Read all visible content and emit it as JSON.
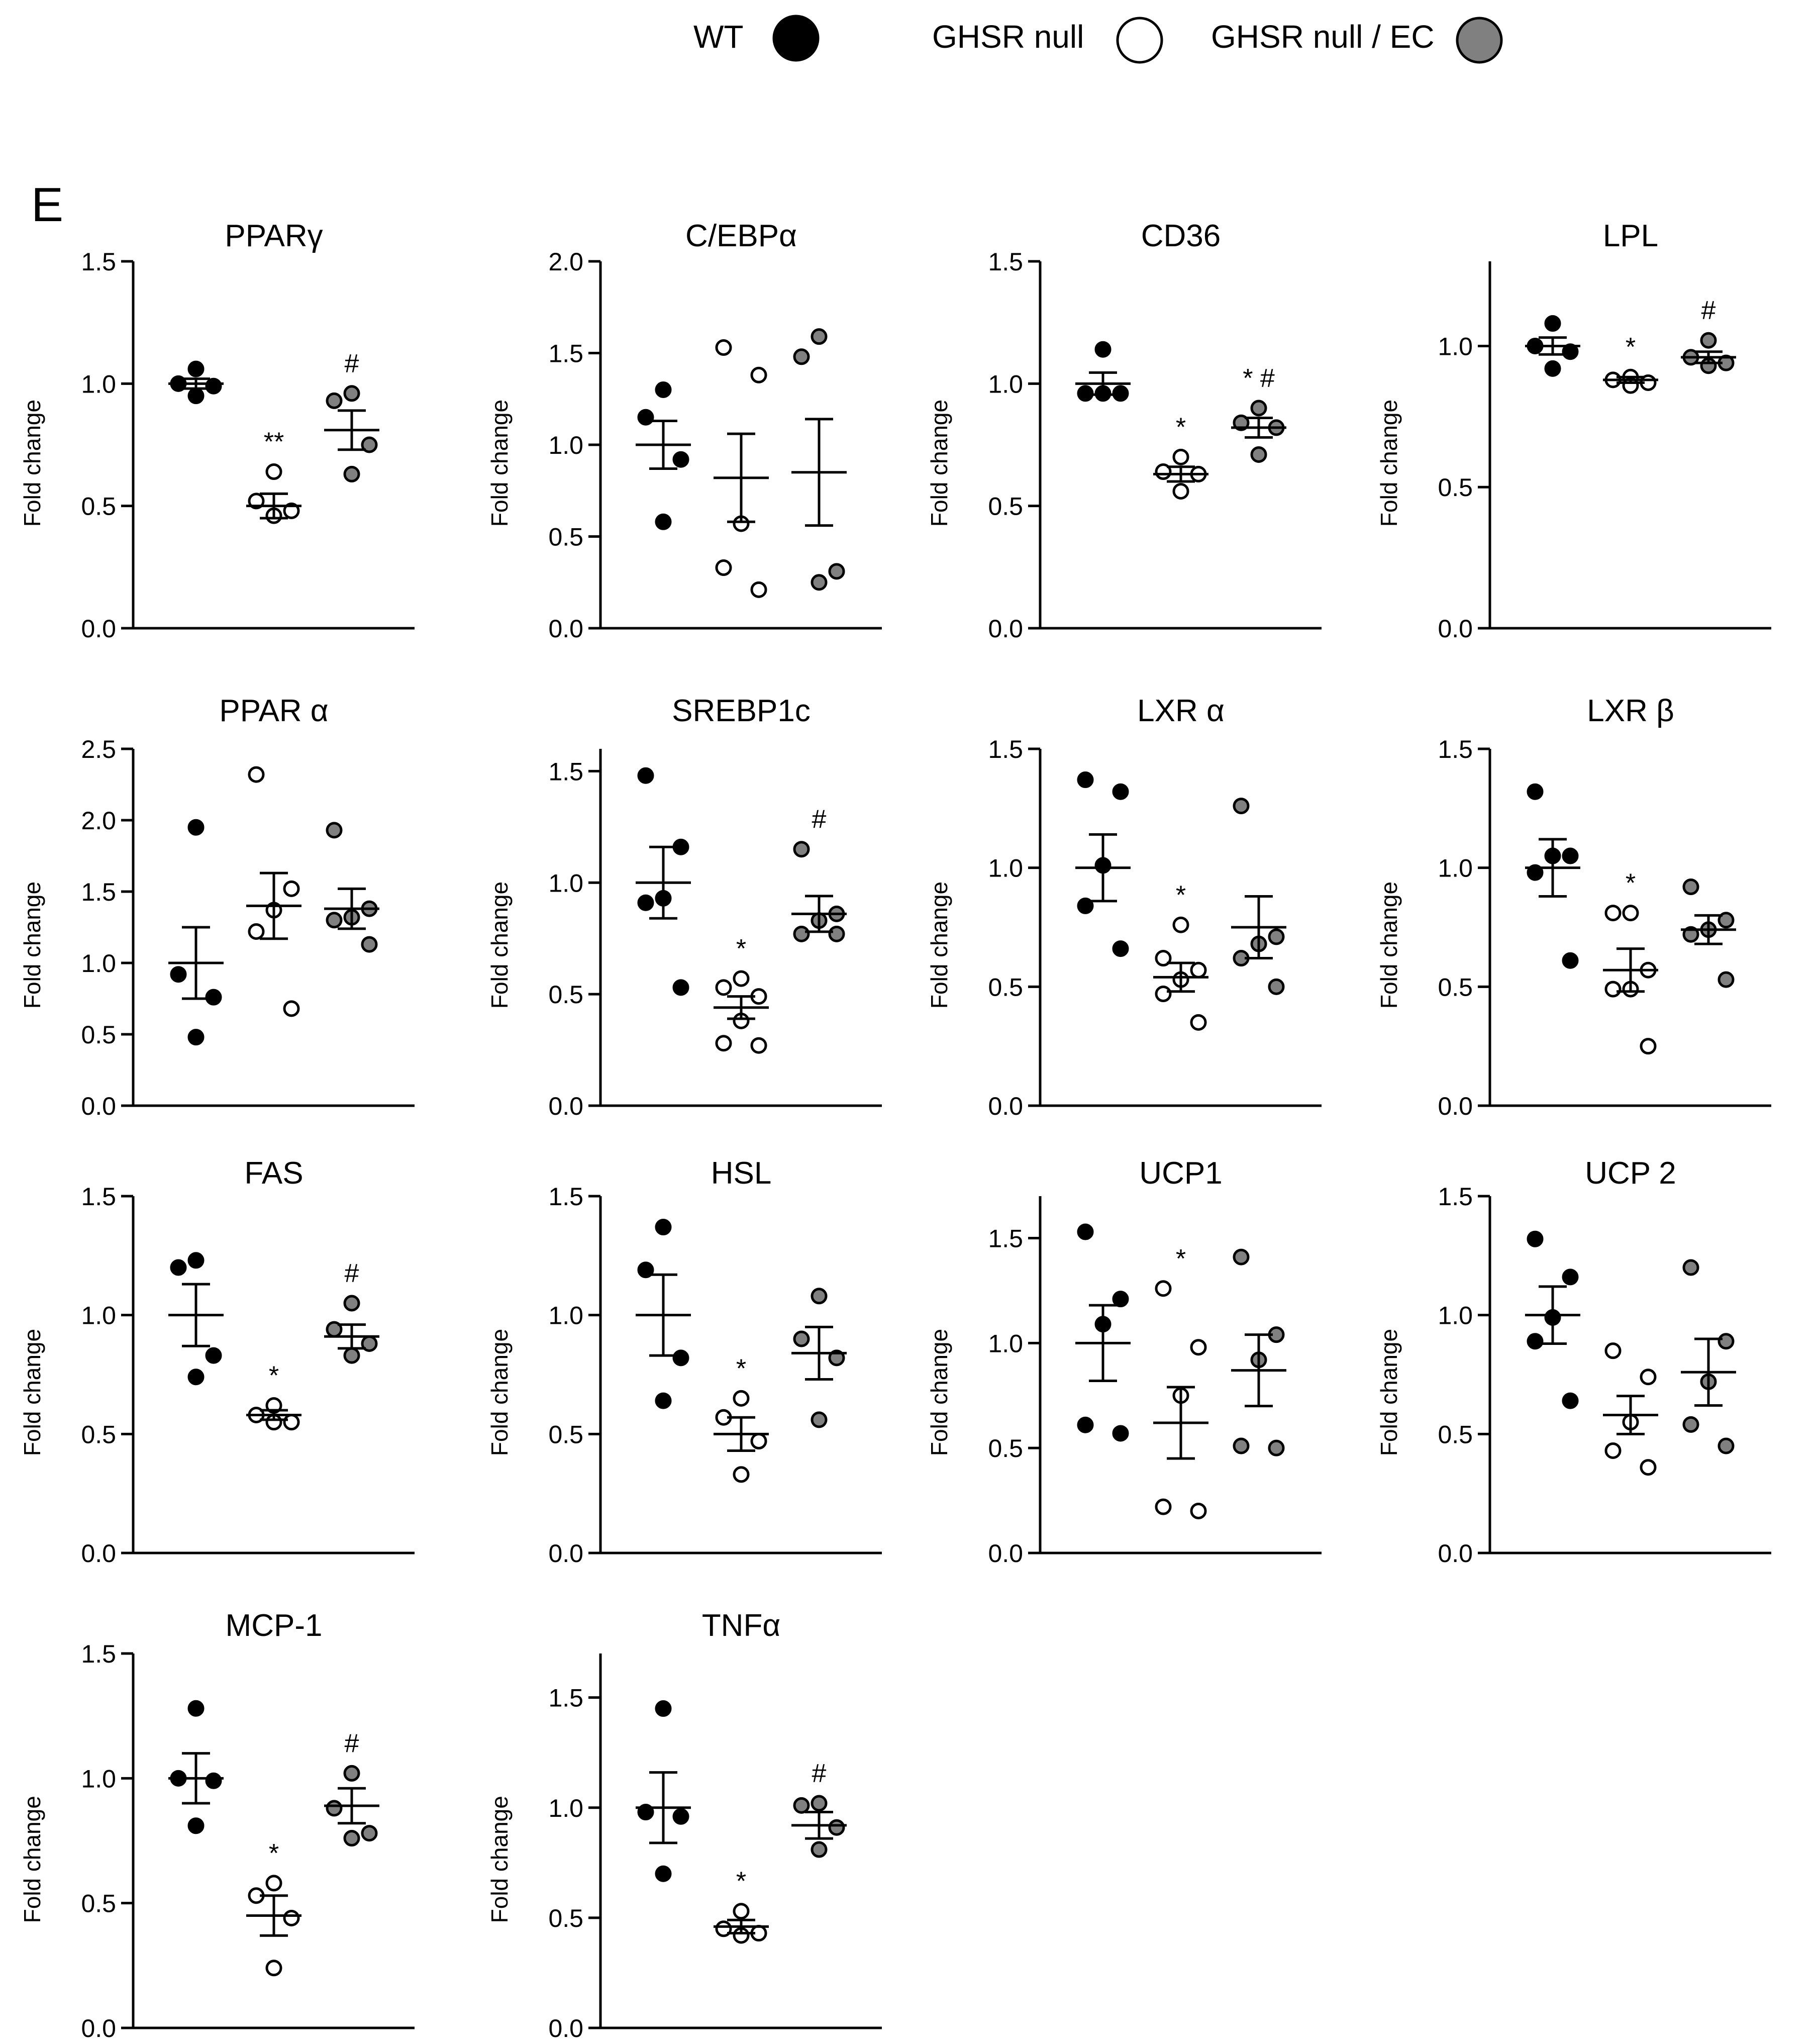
{
  "panel_label": "E",
  "y_label": "Fold change",
  "legend": [
    {
      "name": "WT",
      "fill": "#000000"
    },
    {
      "name": "GHSR null",
      "fill": "#ffffff"
    },
    {
      "name": "GHSR null / EC",
      "fill": "#808080"
    }
  ],
  "colors": {
    "wt": "#000000",
    "null": "#ffffff",
    "ec": "#808080",
    "stroke": "#000000"
  },
  "chart_data": [
    {
      "type": "scatter",
      "title": "PPARγ",
      "ylim": [
        0,
        1.5
      ],
      "yticks": [
        0.0,
        0.5,
        1.0,
        1.5
      ],
      "annotations": [
        "",
        "**",
        "#"
      ],
      "series": [
        {
          "name": "WT",
          "points": [
            1.06,
            1.0,
            0.99,
            0.95
          ],
          "mean": 1.0,
          "sem": 0.02
        },
        {
          "name": "GHSR null",
          "points": [
            0.64,
            0.52,
            0.48,
            0.46
          ],
          "mean": 0.5,
          "sem": 0.05
        },
        {
          "name": "GHSR null / EC",
          "points": [
            0.96,
            0.93,
            0.75,
            0.63
          ],
          "mean": 0.81,
          "sem": 0.08
        }
      ]
    },
    {
      "type": "scatter",
      "title": "C/EBPα",
      "ylim": [
        0,
        2.0
      ],
      "yticks": [
        0.0,
        0.5,
        1.0,
        1.5,
        2.0
      ],
      "annotations": [
        "",
        "",
        ""
      ],
      "series": [
        {
          "name": "WT",
          "points": [
            1.3,
            1.15,
            0.92,
            0.58
          ],
          "mean": 1.0,
          "sem": 0.13
        },
        {
          "name": "GHSR null",
          "points": [
            1.53,
            1.38,
            0.57,
            0.33,
            0.21
          ],
          "mean": 0.82,
          "sem": 0.24
        },
        {
          "name": "GHSR null / EC",
          "points": [
            1.59,
            1.48,
            0.31,
            0.25
          ],
          "mean": 0.85,
          "sem": 0.29
        }
      ]
    },
    {
      "type": "scatter",
      "title": "CD36",
      "ylim": [
        0,
        1.5
      ],
      "yticks": [
        0.0,
        0.5,
        1.0,
        1.5
      ],
      "annotations": [
        "",
        "*",
        "* #"
      ],
      "series": [
        {
          "name": "WT",
          "points": [
            1.14,
            0.96,
            0.96,
            0.96
          ],
          "mean": 1.0,
          "sem": 0.045
        },
        {
          "name": "GHSR null",
          "points": [
            0.7,
            0.64,
            0.63,
            0.56
          ],
          "mean": 0.63,
          "sem": 0.03
        },
        {
          "name": "GHSR null / EC",
          "points": [
            0.9,
            0.84,
            0.82,
            0.71
          ],
          "mean": 0.82,
          "sem": 0.04
        }
      ]
    },
    {
      "type": "scatter",
      "title": "LPL",
      "ylim": [
        0,
        1.3
      ],
      "yticks": [
        0.0,
        0.5,
        1.0
      ],
      "annotations": [
        "",
        "*",
        "#"
      ],
      "series": [
        {
          "name": "WT",
          "points": [
            1.08,
            1.0,
            0.98,
            0.92
          ],
          "mean": 1.0,
          "sem": 0.03
        },
        {
          "name": "GHSR null",
          "points": [
            0.89,
            0.88,
            0.87,
            0.86
          ],
          "mean": 0.88,
          "sem": 0.01
        },
        {
          "name": "GHSR null / EC",
          "points": [
            1.02,
            0.96,
            0.94,
            0.93
          ],
          "mean": 0.96,
          "sem": 0.02
        }
      ]
    },
    {
      "type": "scatter",
      "title": "PPAR α",
      "ylim": [
        0,
        2.5
      ],
      "yticks": [
        0.0,
        0.5,
        1.0,
        1.5,
        2.0,
        2.5
      ],
      "annotations": [
        "",
        "",
        ""
      ],
      "series": [
        {
          "name": "WT",
          "points": [
            1.95,
            0.92,
            0.76,
            0.48
          ],
          "mean": 1.0,
          "sem": 0.25
        },
        {
          "name": "GHSR null",
          "points": [
            2.32,
            1.52,
            1.37,
            1.22,
            0.68
          ],
          "mean": 1.4,
          "sem": 0.23
        },
        {
          "name": "GHSR null / EC",
          "points": [
            1.93,
            1.38,
            1.32,
            1.3,
            1.13
          ],
          "mean": 1.38,
          "sem": 0.14
        }
      ]
    },
    {
      "type": "scatter",
      "title": "SREBP1c",
      "ylim": [
        0,
        1.6
      ],
      "yticks": [
        0.0,
        0.5,
        1.0,
        1.5
      ],
      "annotations": [
        "",
        "*",
        "#"
      ],
      "series": [
        {
          "name": "WT",
          "points": [
            1.48,
            1.16,
            0.93,
            0.91,
            0.53
          ],
          "mean": 1.0,
          "sem": 0.16
        },
        {
          "name": "GHSR null",
          "points": [
            0.57,
            0.53,
            0.49,
            0.38,
            0.28,
            0.27
          ],
          "mean": 0.44,
          "sem": 0.05
        },
        {
          "name": "GHSR null / EC",
          "points": [
            1.15,
            0.86,
            0.83,
            0.77,
            0.77
          ],
          "mean": 0.86,
          "sem": 0.08
        }
      ]
    },
    {
      "type": "scatter",
      "title": "LXR α",
      "ylim": [
        0,
        1.5
      ],
      "yticks": [
        0.0,
        0.5,
        1.0,
        1.5
      ],
      "annotations": [
        "",
        "*",
        ""
      ],
      "series": [
        {
          "name": "WT",
          "points": [
            1.37,
            1.32,
            1.01,
            0.84,
            0.66
          ],
          "mean": 1.0,
          "sem": 0.14
        },
        {
          "name": "GHSR null",
          "points": [
            0.76,
            0.62,
            0.57,
            0.53,
            0.47,
            0.35
          ],
          "mean": 0.54,
          "sem": 0.06
        },
        {
          "name": "GHSR null / EC",
          "points": [
            1.26,
            0.71,
            0.68,
            0.62,
            0.5
          ],
          "mean": 0.75,
          "sem": 0.13
        }
      ]
    },
    {
      "type": "scatter",
      "title": "LXR β",
      "ylim": [
        0,
        1.5
      ],
      "yticks": [
        0.0,
        0.5,
        1.0,
        1.5
      ],
      "annotations": [
        "",
        "*",
        ""
      ],
      "series": [
        {
          "name": "WT",
          "points": [
            1.32,
            1.05,
            1.05,
            0.98,
            0.61
          ],
          "mean": 1.0,
          "sem": 0.12
        },
        {
          "name": "GHSR null",
          "points": [
            0.81,
            0.81,
            0.57,
            0.49,
            0.49,
            0.25
          ],
          "mean": 0.57,
          "sem": 0.09
        },
        {
          "name": "GHSR null / EC",
          "points": [
            0.92,
            0.78,
            0.74,
            0.72,
            0.53
          ],
          "mean": 0.74,
          "sem": 0.06
        }
      ]
    },
    {
      "type": "scatter",
      "title": "FAS",
      "ylim": [
        0,
        1.5
      ],
      "yticks": [
        0.0,
        0.5,
        1.0,
        1.5
      ],
      "annotations": [
        "",
        "*",
        "#"
      ],
      "series": [
        {
          "name": "WT",
          "points": [
            1.23,
            1.2,
            0.83,
            0.74
          ],
          "mean": 1.0,
          "sem": 0.13
        },
        {
          "name": "GHSR null",
          "points": [
            0.62,
            0.58,
            0.55,
            0.55
          ],
          "mean": 0.58,
          "sem": 0.02
        },
        {
          "name": "GHSR null / EC",
          "points": [
            1.05,
            0.94,
            0.88,
            0.83
          ],
          "mean": 0.91,
          "sem": 0.05
        }
      ]
    },
    {
      "type": "scatter",
      "title": "HSL",
      "ylim": [
        0,
        1.5
      ],
      "yticks": [
        0.0,
        0.5,
        1.0,
        1.5
      ],
      "annotations": [
        "",
        "*",
        ""
      ],
      "series": [
        {
          "name": "WT",
          "points": [
            1.37,
            1.19,
            0.82,
            0.64
          ],
          "mean": 1.0,
          "sem": 0.17
        },
        {
          "name": "GHSR null",
          "points": [
            0.65,
            0.57,
            0.47,
            0.33
          ],
          "mean": 0.5,
          "sem": 0.07
        },
        {
          "name": "GHSR null / EC",
          "points": [
            1.08,
            0.9,
            0.82,
            0.56
          ],
          "mean": 0.84,
          "sem": 0.11
        }
      ]
    },
    {
      "type": "scatter",
      "title": "UCP1",
      "ylim": [
        0,
        1.7
      ],
      "yticks": [
        0.0,
        0.5,
        1.0,
        1.5
      ],
      "annotations": [
        "",
        "*",
        ""
      ],
      "series": [
        {
          "name": "WT",
          "points": [
            1.53,
            1.21,
            1.09,
            0.61,
            0.57
          ],
          "mean": 1.0,
          "sem": 0.18
        },
        {
          "name": "GHSR null",
          "points": [
            1.26,
            0.98,
            0.75,
            0.22,
            0.2
          ],
          "mean": 0.62,
          "sem": 0.17
        },
        {
          "name": "GHSR null / EC",
          "points": [
            1.41,
            1.04,
            0.92,
            0.51,
            0.5
          ],
          "mean": 0.87,
          "sem": 0.17
        }
      ]
    },
    {
      "type": "scatter",
      "title": "UCP 2",
      "ylim": [
        0,
        1.5
      ],
      "yticks": [
        0.0,
        0.5,
        1.0,
        1.5
      ],
      "annotations": [
        "",
        "",
        ""
      ],
      "series": [
        {
          "name": "WT",
          "points": [
            1.32,
            1.16,
            0.99,
            0.89,
            0.64
          ],
          "mean": 1.0,
          "sem": 0.12
        },
        {
          "name": "GHSR null",
          "points": [
            0.85,
            0.74,
            0.55,
            0.43,
            0.36
          ],
          "mean": 0.58,
          "sem": 0.08
        },
        {
          "name": "GHSR null / EC",
          "points": [
            1.2,
            0.89,
            0.72,
            0.54,
            0.45
          ],
          "mean": 0.76,
          "sem": 0.14
        }
      ]
    },
    {
      "type": "scatter",
      "title": "MCP-1",
      "ylim": [
        0,
        1.5
      ],
      "yticks": [
        0.0,
        0.5,
        1.0,
        1.5
      ],
      "annotations": [
        "",
        "*",
        "#"
      ],
      "series": [
        {
          "name": "WT",
          "points": [
            1.28,
            1.0,
            0.99,
            0.81
          ],
          "mean": 1.0,
          "sem": 0.1
        },
        {
          "name": "GHSR null",
          "points": [
            0.58,
            0.53,
            0.44,
            0.24
          ],
          "mean": 0.45,
          "sem": 0.08
        },
        {
          "name": "GHSR null / EC",
          "points": [
            1.02,
            0.88,
            0.78,
            0.76
          ],
          "mean": 0.89,
          "sem": 0.07
        }
      ]
    },
    {
      "type": "scatter",
      "title": "TNFα",
      "ylim": [
        0,
        1.7
      ],
      "yticks": [
        0.0,
        0.5,
        1.0,
        1.5
      ],
      "annotations": [
        "",
        "*",
        "#"
      ],
      "series": [
        {
          "name": "WT",
          "points": [
            1.45,
            0.98,
            0.96,
            0.7
          ],
          "mean": 1.0,
          "sem": 0.16
        },
        {
          "name": "GHSR null",
          "points": [
            0.53,
            0.45,
            0.43,
            0.42
          ],
          "mean": 0.46,
          "sem": 0.03
        },
        {
          "name": "GHSR null / EC",
          "points": [
            1.02,
            1.01,
            0.91,
            0.81
          ],
          "mean": 0.92,
          "sem": 0.06
        }
      ]
    }
  ]
}
